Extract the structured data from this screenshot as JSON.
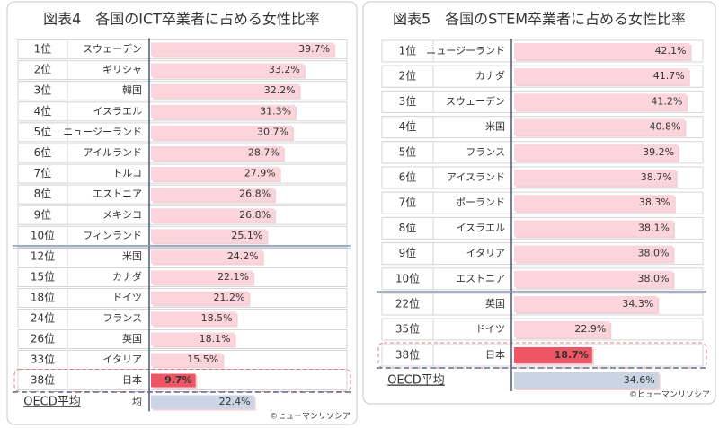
{
  "chart_data": [
    {
      "type": "bar",
      "title": "図表4　各国のICT卒業者に占める女性比率",
      "ranks": [
        "1位",
        "2位",
        "3位",
        "4位",
        "5位",
        "6位",
        "7位",
        "8位",
        "9位",
        "10位",
        "12位",
        "15位",
        "18位",
        "24位",
        "26位",
        "33位",
        "38位",
        "OECD平均"
      ],
      "categories": [
        "スウェーデン",
        "ギリシャ",
        "韓国",
        "イスラエル",
        "ニュージーランド",
        "アイルランド",
        "トルコ",
        "エストニア",
        "メキシコ",
        "フィンランド",
        "米国",
        "カナダ",
        "ドイツ",
        "フランス",
        "英国",
        "イタリア",
        "日本",
        "均"
      ],
      "values": [
        39.7,
        33.2,
        32.2,
        31.3,
        30.7,
        28.7,
        27.9,
        26.8,
        26.8,
        25.1,
        24.2,
        22.1,
        21.2,
        18.5,
        18.1,
        15.5,
        9.7,
        22.4
      ],
      "value_labels": [
        "39.7%",
        "33.2%",
        "32.2%",
        "31.3%",
        "30.7%",
        "28.7%",
        "27.9%",
        "26.8%",
        "26.8%",
        "25.1%",
        "24.2%",
        "22.1%",
        "21.2%",
        "18.5%",
        "18.1%",
        "15.5%",
        "9.7%",
        "22.4%"
      ],
      "bar_colors": [
        "#fbd5db",
        "#fbd5db",
        "#fbd5db",
        "#fbd5db",
        "#fbd5db",
        "#fbd5db",
        "#fbd5db",
        "#fbd5db",
        "#fbd5db",
        "#fbd5db",
        "#fbd5db",
        "#fbd5db",
        "#fbd5db",
        "#fbd5db",
        "#fbd5db",
        "#fbd5db",
        "#ee5565",
        "#c9d5e4"
      ],
      "source": "©ヒューマンリソシア"
    },
    {
      "type": "bar",
      "title": "図表5　各国のSTEM卒業者に占める女性比率",
      "ranks": [
        "1位",
        "2位",
        "3位",
        "4位",
        "5位",
        "6位",
        "7位",
        "8位",
        "9位",
        "10位",
        "22位",
        "35位",
        "38位",
        "OECD平均"
      ],
      "categories": [
        "ニュージーランド",
        "カナダ",
        "スウェーデン",
        "米国",
        "フランス",
        "アイスランド",
        "ポーランド",
        "イスラエル",
        "イタリア",
        "エストニア",
        "英国",
        "ドイツ",
        "日本",
        null
      ],
      "values": [
        42.1,
        41.7,
        41.2,
        40.8,
        39.2,
        38.7,
        38.3,
        38.1,
        38.0,
        38.0,
        34.3,
        22.9,
        18.7,
        34.6
      ],
      "value_labels": [
        "42.1%",
        "41.7%",
        "41.2%",
        "40.8%",
        "39.2%",
        "38.7%",
        "38.3%",
        "38.1%",
        "38.0%",
        "38.0%",
        "34.3%",
        "22.9%",
        "18.7%",
        "34.6%"
      ],
      "bar_colors": [
        "#fbd5db",
        "#fbd5db",
        "#fbd5db",
        "#fbd5db",
        "#fbd5db",
        "#fbd5db",
        "#fbd5db",
        "#fbd5db",
        "#fbd5db",
        "#fbd5db",
        "#fbd5db",
        "#fbd5db",
        "#ee5565",
        "#c9d5e4"
      ],
      "source": "©ヒューマンリソシア"
    }
  ]
}
